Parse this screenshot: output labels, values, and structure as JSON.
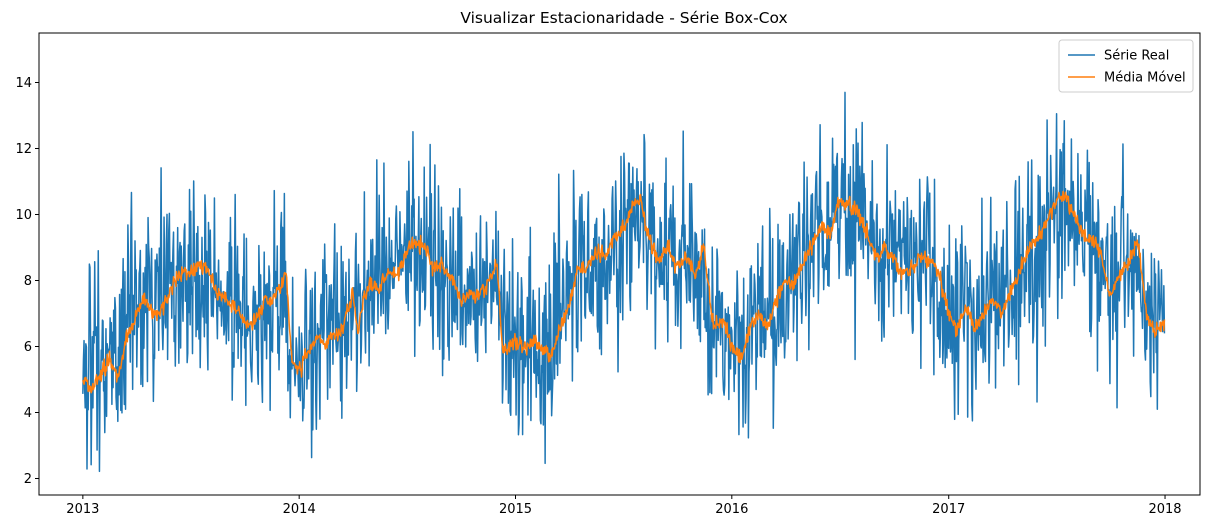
{
  "chart_data": {
    "type": "line",
    "title": "Visualizar Estacionaridade - Série Box-Cox",
    "xlabel": "",
    "ylabel": "",
    "x_range": [
      "2013-01-01",
      "2017-12-31"
    ],
    "xlim": [
      "2012-10-19",
      "2018-03-01"
    ],
    "ylim": [
      1.5,
      15.5
    ],
    "x_ticks": [
      "2013-01-01",
      "2014-01-01",
      "2015-01-01",
      "2016-01-01",
      "2017-01-01",
      "2018-01-01"
    ],
    "x_tick_labels": [
      "2013",
      "2014",
      "2015",
      "2016",
      "2017",
      "2018"
    ],
    "y_ticks": [
      2,
      4,
      6,
      8,
      10,
      12,
      14
    ],
    "y_tick_labels": [
      "2",
      "4",
      "6",
      "8",
      "10",
      "12",
      "14"
    ],
    "grid": false,
    "legend": {
      "position": "top-right"
    },
    "series": [
      {
        "name": "Série Real",
        "color": "#1f77b4",
        "sampling": "daily",
        "trend_points": [
          [
            "2013-01-01",
            5.2
          ],
          [
            "2013-02-01",
            5.3
          ],
          [
            "2013-03-01",
            6.2
          ],
          [
            "2013-04-01",
            7.3
          ],
          [
            "2013-05-01",
            7.2
          ],
          [
            "2013-06-01",
            8.0
          ],
          [
            "2013-07-01",
            8.3
          ],
          [
            "2013-08-01",
            8.2
          ],
          [
            "2013-09-01",
            7.2
          ],
          [
            "2013-10-01",
            6.8
          ],
          [
            "2013-11-01",
            7.2
          ],
          [
            "2013-12-01",
            7.3
          ],
          [
            "2013-12-20",
            5.8
          ],
          [
            "2014-01-01",
            5.6
          ],
          [
            "2014-02-01",
            6.2
          ],
          [
            "2014-03-01",
            6.5
          ],
          [
            "2014-04-01",
            7.0
          ],
          [
            "2014-05-01",
            7.9
          ],
          [
            "2014-06-01",
            8.3
          ],
          [
            "2014-07-01",
            9.0
          ],
          [
            "2014-08-01",
            9.0
          ],
          [
            "2014-09-01",
            8.3
          ],
          [
            "2014-10-01",
            7.6
          ],
          [
            "2014-11-01",
            7.6
          ],
          [
            "2014-12-01",
            8.0
          ],
          [
            "2014-12-20",
            6.0
          ],
          [
            "2015-01-01",
            6.0
          ],
          [
            "2015-02-01",
            6.1
          ],
          [
            "2015-03-01",
            6.2
          ],
          [
            "2015-04-01",
            7.8
          ],
          [
            "2015-05-01",
            8.5
          ],
          [
            "2015-06-01",
            9.0
          ],
          [
            "2015-07-01",
            9.6
          ],
          [
            "2015-08-01",
            9.9
          ],
          [
            "2015-09-01",
            8.8
          ],
          [
            "2015-10-01",
            8.6
          ],
          [
            "2015-11-01",
            8.5
          ],
          [
            "2015-12-01",
            6.8
          ],
          [
            "2016-01-01",
            6.0
          ],
          [
            "2016-02-01",
            6.3
          ],
          [
            "2016-03-01",
            6.8
          ],
          [
            "2016-04-01",
            7.8
          ],
          [
            "2016-05-01",
            8.6
          ],
          [
            "2016-06-01",
            9.2
          ],
          [
            "2016-07-01",
            10.2
          ],
          [
            "2016-08-01",
            9.8
          ],
          [
            "2016-09-01",
            8.9
          ],
          [
            "2016-10-01",
            8.5
          ],
          [
            "2016-11-01",
            8.5
          ],
          [
            "2016-12-01",
            8.6
          ],
          [
            "2016-12-25",
            7.0
          ],
          [
            "2017-01-01",
            6.9
          ],
          [
            "2017-02-01",
            6.8
          ],
          [
            "2017-03-01",
            7.0
          ],
          [
            "2017-04-01",
            7.2
          ],
          [
            "2017-05-01",
            8.0
          ],
          [
            "2017-06-01",
            9.1
          ],
          [
            "2017-07-01",
            10.0
          ],
          [
            "2017-08-01",
            10.0
          ],
          [
            "2017-09-01",
            9.1
          ],
          [
            "2017-10-01",
            8.2
          ],
          [
            "2017-11-01",
            8.6
          ],
          [
            "2017-12-01",
            7.4
          ],
          [
            "2017-12-31",
            6.6
          ]
        ],
        "min": 2.1,
        "max": 14.8
      },
      {
        "name": "Média Móvel",
        "color": "#ff7f0e",
        "sampling": "daily",
        "points": [
          [
            "2013-01-01",
            5.1
          ],
          [
            "2013-01-15",
            4.7
          ],
          [
            "2013-02-01",
            5.2
          ],
          [
            "2013-02-15",
            5.6
          ],
          [
            "2013-03-01",
            5.0
          ],
          [
            "2013-03-15",
            6.2
          ],
          [
            "2013-04-01",
            7.0
          ],
          [
            "2013-04-15",
            7.5
          ],
          [
            "2013-05-01",
            7.0
          ],
          [
            "2013-05-15",
            7.1
          ],
          [
            "2013-06-01",
            7.8
          ],
          [
            "2013-06-15",
            8.3
          ],
          [
            "2013-07-01",
            8.2
          ],
          [
            "2013-07-15",
            8.5
          ],
          [
            "2013-08-01",
            8.3
          ],
          [
            "2013-08-15",
            7.6
          ],
          [
            "2013-09-01",
            7.4
          ],
          [
            "2013-09-15",
            7.2
          ],
          [
            "2013-10-01",
            6.8
          ],
          [
            "2013-10-15",
            6.6
          ],
          [
            "2013-11-01",
            7.3
          ],
          [
            "2013-11-15",
            7.4
          ],
          [
            "2013-12-01",
            7.8
          ],
          [
            "2013-12-10",
            8.2
          ],
          [
            "2013-12-20",
            5.5
          ],
          [
            "2014-01-01",
            5.3
          ],
          [
            "2014-01-15",
            5.8
          ],
          [
            "2014-02-01",
            6.3
          ],
          [
            "2014-02-15",
            6.1
          ],
          [
            "2014-03-01",
            6.4
          ],
          [
            "2014-03-15",
            6.5
          ],
          [
            "2014-04-01",
            7.6
          ],
          [
            "2014-04-10",
            6.4
          ],
          [
            "2014-04-20",
            7.5
          ],
          [
            "2014-05-01",
            7.9
          ],
          [
            "2014-05-15",
            7.7
          ],
          [
            "2014-06-01",
            8.3
          ],
          [
            "2014-06-15",
            8.2
          ],
          [
            "2014-07-01",
            8.7
          ],
          [
            "2014-07-15",
            9.2
          ],
          [
            "2014-08-01",
            9.0
          ],
          [
            "2014-08-15",
            8.4
          ],
          [
            "2014-09-01",
            8.4
          ],
          [
            "2014-09-15",
            8.1
          ],
          [
            "2014-10-01",
            7.4
          ],
          [
            "2014-10-15",
            7.6
          ],
          [
            "2014-11-01",
            7.6
          ],
          [
            "2014-11-15",
            7.9
          ],
          [
            "2014-12-01",
            8.6
          ],
          [
            "2014-12-10",
            5.8
          ],
          [
            "2015-01-01",
            6.2
          ],
          [
            "2015-01-15",
            6.0
          ],
          [
            "2015-02-01",
            6.2
          ],
          [
            "2015-02-15",
            5.9
          ],
          [
            "2015-03-01",
            5.7
          ],
          [
            "2015-03-15",
            6.5
          ],
          [
            "2015-04-01",
            7.2
          ],
          [
            "2015-04-15",
            8.3
          ],
          [
            "2015-05-01",
            8.4
          ],
          [
            "2015-05-15",
            8.8
          ],
          [
            "2015-06-01",
            8.7
          ],
          [
            "2015-06-15",
            9.2
          ],
          [
            "2015-07-01",
            9.5
          ],
          [
            "2015-07-15",
            10.2
          ],
          [
            "2015-08-01",
            10.4
          ],
          [
            "2015-08-15",
            9.2
          ],
          [
            "2015-09-01",
            8.6
          ],
          [
            "2015-09-15",
            9.0
          ],
          [
            "2015-10-01",
            8.4
          ],
          [
            "2015-10-15",
            8.7
          ],
          [
            "2015-11-01",
            8.2
          ],
          [
            "2015-11-15",
            9.0
          ],
          [
            "2015-12-01",
            6.5
          ],
          [
            "2015-12-15",
            6.9
          ],
          [
            "2016-01-01",
            6.0
          ],
          [
            "2016-01-15",
            5.7
          ],
          [
            "2016-02-01",
            6.5
          ],
          [
            "2016-02-15",
            7.0
          ],
          [
            "2016-03-01",
            6.5
          ],
          [
            "2016-03-15",
            7.3
          ],
          [
            "2016-04-01",
            8.0
          ],
          [
            "2016-04-15",
            7.9
          ],
          [
            "2016-05-01",
            8.5
          ],
          [
            "2016-05-15",
            9.0
          ],
          [
            "2016-06-01",
            9.7
          ],
          [
            "2016-06-15",
            9.4
          ],
          [
            "2016-07-01",
            10.4
          ],
          [
            "2016-07-15",
            10.3
          ],
          [
            "2016-08-01",
            10.1
          ],
          [
            "2016-08-15",
            9.4
          ],
          [
            "2016-09-01",
            8.7
          ],
          [
            "2016-09-15",
            9.0
          ],
          [
            "2016-10-01",
            8.6
          ],
          [
            "2016-10-15",
            8.2
          ],
          [
            "2016-11-01",
            8.4
          ],
          [
            "2016-11-15",
            8.8
          ],
          [
            "2016-12-01",
            8.6
          ],
          [
            "2016-12-15",
            8.2
          ],
          [
            "2017-01-01",
            7.0
          ],
          [
            "2017-01-15",
            6.6
          ],
          [
            "2017-02-01",
            7.2
          ],
          [
            "2017-02-15",
            6.5
          ],
          [
            "2017-03-01",
            7.0
          ],
          [
            "2017-03-15",
            7.4
          ],
          [
            "2017-04-01",
            7.0
          ],
          [
            "2017-04-15",
            7.6
          ],
          [
            "2017-05-01",
            8.2
          ],
          [
            "2017-05-15",
            9.0
          ],
          [
            "2017-06-01",
            9.3
          ],
          [
            "2017-06-15",
            9.7
          ],
          [
            "2017-07-01",
            10.4
          ],
          [
            "2017-07-15",
            10.5
          ],
          [
            "2017-08-01",
            10.0
          ],
          [
            "2017-08-15",
            9.4
          ],
          [
            "2017-09-01",
            9.2
          ],
          [
            "2017-09-15",
            8.8
          ],
          [
            "2017-10-01",
            7.5
          ],
          [
            "2017-10-15",
            8.2
          ],
          [
            "2017-11-01",
            8.5
          ],
          [
            "2017-11-15",
            9.3
          ],
          [
            "2017-12-01",
            7.0
          ],
          [
            "2017-12-15",
            6.4
          ],
          [
            "2017-12-31",
            6.8
          ]
        ]
      }
    ]
  }
}
